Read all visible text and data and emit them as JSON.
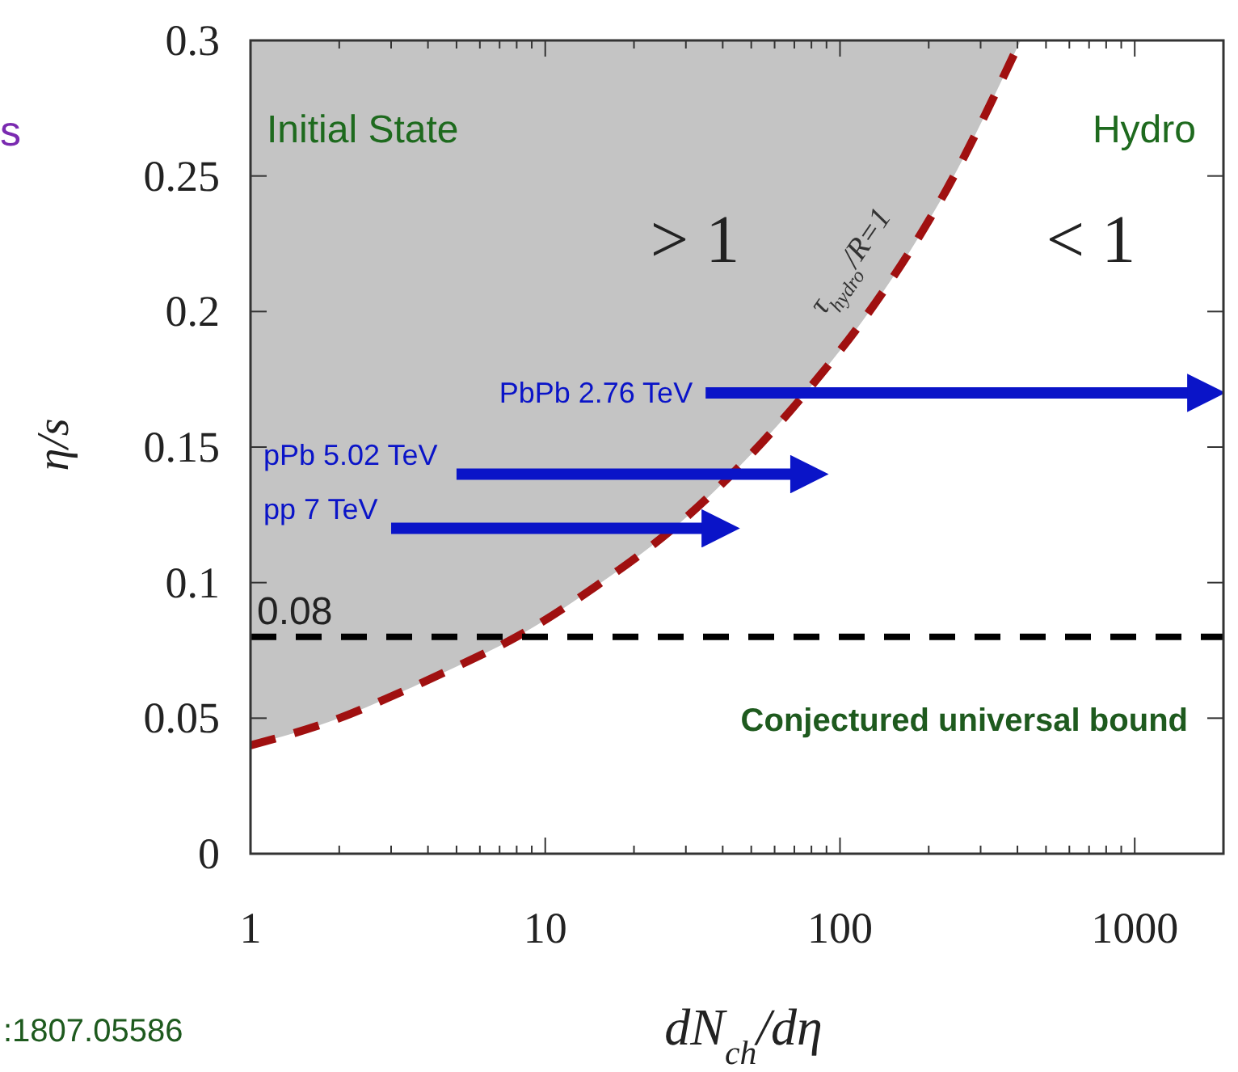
{
  "chart_data": {
    "type": "line",
    "xlabel": "dN$_{ch}$/dη",
    "ylabel": "η/s",
    "log": "x",
    "xlim": [
      1,
      2000
    ],
    "ylim": [
      0,
      0.3
    ],
    "xticks": [
      1,
      {
        "value": 2,
        "label": null
      },
      {
        "value": 3,
        "label": null
      },
      {
        "value": 4,
        "label": null
      },
      {
        "value": 5,
        "label": null
      },
      {
        "value": 6,
        "label": null
      },
      {
        "value": 7,
        "label": null
      },
      {
        "value": 8,
        "label": null
      },
      {
        "value": 9,
        "label": null
      },
      10,
      {
        "value": 20,
        "label": null
      },
      {
        "value": 30,
        "label": null
      },
      {
        "value": 40,
        "label": null
      },
      {
        "value": 50,
        "label": null
      },
      {
        "value": 60,
        "label": null
      },
      {
        "value": 70,
        "label": null
      },
      {
        "value": 80,
        "label": null
      },
      {
        "value": 90,
        "label": null
      },
      100,
      {
        "value": 200,
        "label": null
      },
      {
        "value": 300,
        "label": null
      },
      {
        "value": 400,
        "label": null
      },
      {
        "value": 500,
        "label": null
      },
      {
        "value": 600,
        "label": null
      },
      {
        "value": 700,
        "label": null
      },
      {
        "value": 800,
        "label": null
      },
      {
        "value": 900,
        "label": null
      },
      1000
    ],
    "yticks": [
      0,
      0.05,
      0.1,
      0.15,
      0.2,
      0.25,
      0.3
    ],
    "series": [
      {
        "color": "#a01010",
        "line_style": "dashed",
        "x": [
          1,
          2,
          3,
          5,
          8,
          15,
          30,
          82,
          122,
          230,
          410
        ],
        "values": [
          0.04,
          0.05,
          0.058,
          0.069,
          0.08,
          0.099,
          0.124,
          0.174,
          0.198,
          0.245,
          0.3
        ]
      },
      {
        "name": "PbPb 2.76 TeV",
        "color": "#0a14c8",
        "line_style": "solid",
        "x": [
          35,
          1600
        ],
        "values": [
          0.17,
          0.17
        ]
      },
      {
        "name": "pPb 5.02 TeV",
        "color": "#0a14c8",
        "line_style": "solid",
        "x": [
          5,
          72
        ],
        "values": [
          0.14,
          0.14
        ]
      },
      {
        "name": "pp 7 TeV",
        "color": "#0a14c8",
        "line_style": "solid",
        "x": [
          3,
          36
        ],
        "values": [
          0.12,
          0.12
        ]
      }
    ],
    "ref_lines": [
      {
        "axis": "y",
        "value": 0.08,
        "label": "0.08",
        "color": "#000000",
        "line_style": "dashed"
      }
    ],
    "annotations": [
      "Initial State",
      "Hydro",
      "> 1",
      "< 1",
      "τ$_{hydro}$/R=1",
      "Conjectured universal bound",
      "s",
      ":1807.05586"
    ]
  }
}
